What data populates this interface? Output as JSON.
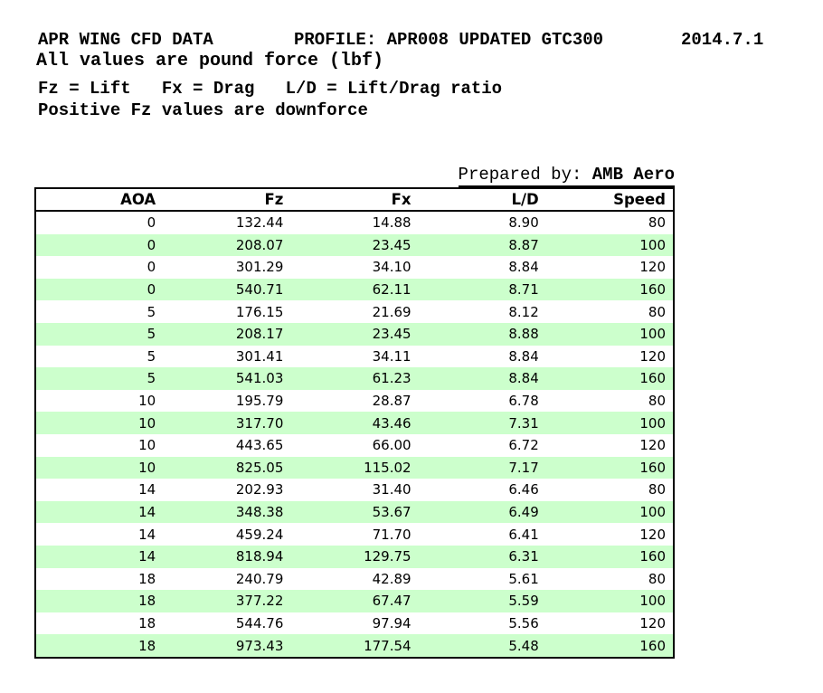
{
  "header": {
    "title_left": "APR WING CFD DATA",
    "title_profile": "PROFILE: APR008 UPDATED GTC300",
    "title_date": "2014.7.1",
    "subtitle": "All values are pound force (lbf)",
    "legend": "Fz = Lift   Fx = Drag   L/D = Lift/Drag ratio",
    "note": "Positive Fz values are downforce"
  },
  "prepared_by": {
    "label": "Prepared by: ",
    "value": "AMB Aero"
  },
  "table": {
    "columns": [
      "AOA",
      "Fz",
      "Fx",
      "L/D",
      "Speed"
    ],
    "rows": [
      [
        "0",
        "132.44",
        "14.88",
        "8.90",
        "80"
      ],
      [
        "0",
        "208.07",
        "23.45",
        "8.87",
        "100"
      ],
      [
        "0",
        "301.29",
        "34.10",
        "8.84",
        "120"
      ],
      [
        "0",
        "540.71",
        "62.11",
        "8.71",
        "160"
      ],
      [
        "5",
        "176.15",
        "21.69",
        "8.12",
        "80"
      ],
      [
        "5",
        "208.17",
        "23.45",
        "8.88",
        "100"
      ],
      [
        "5",
        "301.41",
        "34.11",
        "8.84",
        "120"
      ],
      [
        "5",
        "541.03",
        "61.23",
        "8.84",
        "160"
      ],
      [
        "10",
        "195.79",
        "28.87",
        "6.78",
        "80"
      ],
      [
        "10",
        "317.70",
        "43.46",
        "7.31",
        "100"
      ],
      [
        "10",
        "443.65",
        "66.00",
        "6.72",
        "120"
      ],
      [
        "10",
        "825.05",
        "115.02",
        "7.17",
        "160"
      ],
      [
        "14",
        "202.93",
        "31.40",
        "6.46",
        "80"
      ],
      [
        "14",
        "348.38",
        "53.67",
        "6.49",
        "100"
      ],
      [
        "14",
        "459.24",
        "71.70",
        "6.41",
        "120"
      ],
      [
        "14",
        "818.94",
        "129.75",
        "6.31",
        "160"
      ],
      [
        "18",
        "240.79",
        "42.89",
        "5.61",
        "80"
      ],
      [
        "18",
        "377.22",
        "67.47",
        "5.59",
        "100"
      ],
      [
        "18",
        "544.76",
        "97.94",
        "5.56",
        "120"
      ],
      [
        "18",
        "973.43",
        "177.54",
        "5.48",
        "160"
      ]
    ],
    "colors": {
      "row_alt_green": "#ccffcc",
      "border": "#000000",
      "text": "#000000"
    }
  }
}
